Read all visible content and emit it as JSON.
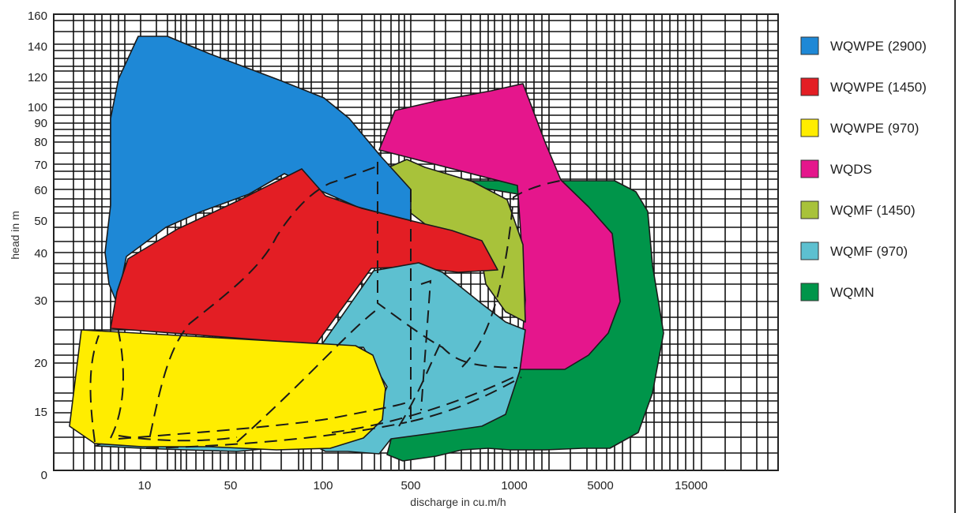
{
  "chart_data": {
    "type": "area",
    "title": "",
    "xlabel": "discharge in cu.m/h",
    "ylabel": "head in m",
    "x_ticks": [
      "10",
      "50",
      "100",
      "500",
      "1000",
      "5000",
      "15000"
    ],
    "y_ticks": [
      "0",
      "15",
      "20",
      "30",
      "40",
      "50",
      "60",
      "70",
      "80",
      "90",
      "100",
      "120",
      "140",
      "160"
    ],
    "grid": true,
    "legend_position": "right",
    "series": [
      {
        "name": "WQWPE (2900)",
        "color": "#1e88d6"
      },
      {
        "name": "WQWPE (1450)",
        "color": "#e31e24"
      },
      {
        "name": "WQWPE (970)",
        "color": "#ffed00"
      },
      {
        "name": "WQDS",
        "color": "#e5168c"
      },
      {
        "name": "WQMF (1450)",
        "color": "#a8c23a"
      },
      {
        "name": "WQMF (970)",
        "color": "#5dc0d0"
      },
      {
        "name": "WQMN",
        "color": "#00954a"
      }
    ]
  }
}
